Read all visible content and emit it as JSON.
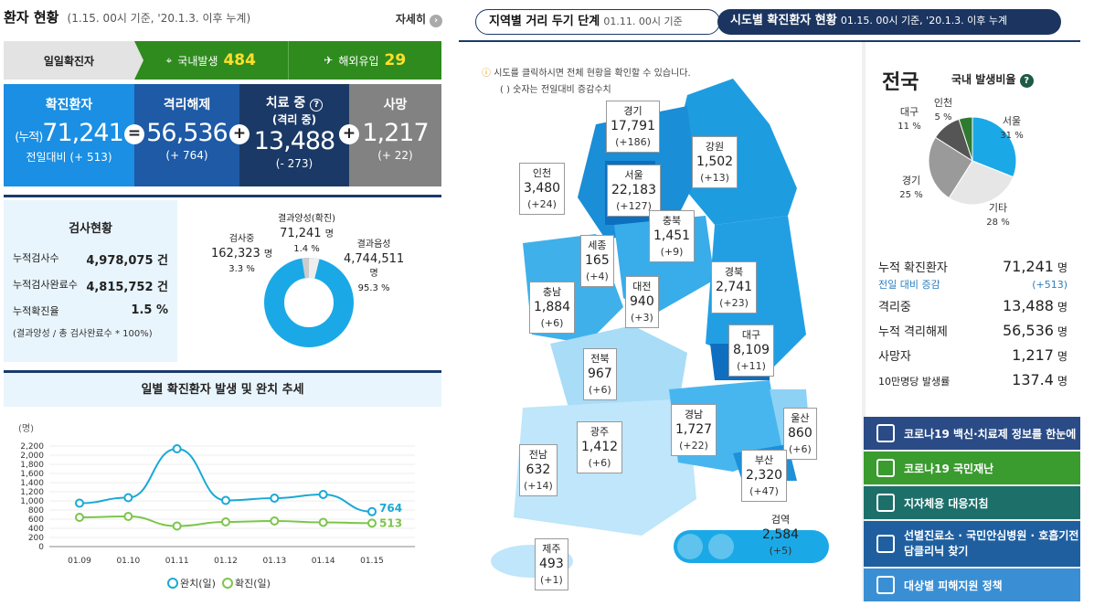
{
  "header": {
    "title": "환자 현황",
    "subtitle": "(1.15. 00시 기준, '20.1.3. 이후 누계)",
    "more_label": "자세히"
  },
  "daily": {
    "label": "일일확진자",
    "domestic_label": "국내발생",
    "domestic": "484",
    "overseas_label": "해외유입",
    "overseas": "29"
  },
  "stats": {
    "confirmed": {
      "label": "확진환자",
      "prefix": "(누적)",
      "value": "71,241",
      "delta": "전일대비 (+ 513)"
    },
    "released": {
      "label": "격리해제",
      "value": "56,536",
      "delta": "(+ 764)"
    },
    "treating": {
      "label": "치료 중",
      "sub": "(격리 중)",
      "value": "13,488",
      "delta": "(- 273)"
    },
    "deaths": {
      "label": "사망",
      "value": "1,217",
      "delta": "(+ 22)"
    }
  },
  "test": {
    "title": "검사현황",
    "rows": [
      {
        "label": "누적검사수",
        "value": "4,978,075 건"
      },
      {
        "label": "누적검사완료수",
        "value": "4,815,752 건"
      },
      {
        "label": "누적확진율",
        "value": "1.5 %"
      }
    ],
    "note": "(결과양성 / 총 검사완료수 * 100%)",
    "donut": {
      "testing": {
        "label": "검사중",
        "value": "162,323",
        "unit": "명",
        "pct": "3.3 %"
      },
      "positive": {
        "label": "결과양성(확진)",
        "value": "71,241",
        "unit": "명",
        "pct": "1.4 %"
      },
      "negative": {
        "label": "결과음성",
        "value": "4,744,511",
        "unit": "명",
        "pct": "95.3 %"
      }
    }
  },
  "trend": {
    "title": "일별 확진환자 발생 및 완치 추세",
    "unit": "(명)",
    "legend": [
      "완치(일)",
      "확진(일)"
    ]
  },
  "chart_data": {
    "type": "line",
    "x": [
      "01.09",
      "01.10",
      "01.11",
      "01.12",
      "01.13",
      "01.14",
      "01.15"
    ],
    "ylim": [
      0,
      2200
    ],
    "yticks": [
      "0",
      "200",
      "400",
      "600",
      "800",
      "1,000",
      "1,200",
      "1,400",
      "1,600",
      "1,800",
      "2,000",
      "2,200"
    ],
    "series": [
      {
        "name": "완치(일)",
        "color": "#1aa9d6",
        "values": [
          950,
          1070,
          2140,
          1010,
          1060,
          1140,
          764
        ],
        "end_label": "764"
      },
      {
        "name": "확진(일)",
        "color": "#7cc54a",
        "values": [
          640,
          660,
          450,
          540,
          560,
          530,
          513
        ],
        "end_label": "513"
      }
    ]
  },
  "tabs": {
    "tab1": {
      "label": "지역별 거리 두기 단계",
      "sub": "01.11. 00시 기준"
    },
    "tab2": {
      "label": "시도별 확진환자 현황",
      "sub": "01.15. 00시 기준, '20.1.3. 이후 누계"
    }
  },
  "map": {
    "note1": "시도를 클릭하시면 전체 현황을 확인할 수 있습니다.",
    "note2": "( ) 숫자는 전일대비 증감수치",
    "regions": [
      {
        "name": "경기",
        "count": "17,791",
        "delta": "(+186)"
      },
      {
        "name": "강원",
        "count": "1,502",
        "delta": "(+13)"
      },
      {
        "name": "인천",
        "count": "3,480",
        "delta": "(+24)"
      },
      {
        "name": "서울",
        "count": "22,183",
        "delta": "(+127)"
      },
      {
        "name": "충북",
        "count": "1,451",
        "delta": "(+9)"
      },
      {
        "name": "세종",
        "count": "165",
        "delta": "(+4)"
      },
      {
        "name": "충남",
        "count": "1,884",
        "delta": "(+6)"
      },
      {
        "name": "대전",
        "count": "940",
        "delta": "(+3)"
      },
      {
        "name": "경북",
        "count": "2,741",
        "delta": "(+23)"
      },
      {
        "name": "대구",
        "count": "8,109",
        "delta": "(+11)"
      },
      {
        "name": "전북",
        "count": "967",
        "delta": "(+6)"
      },
      {
        "name": "울산",
        "count": "860",
        "delta": "(+6)"
      },
      {
        "name": "경남",
        "count": "1,727",
        "delta": "(+22)"
      },
      {
        "name": "광주",
        "count": "1,412",
        "delta": "(+6)"
      },
      {
        "name": "전남",
        "count": "632",
        "delta": "(+14)"
      },
      {
        "name": "부산",
        "count": "2,320",
        "delta": "(+47)"
      },
      {
        "name": "검역",
        "count": "2,584",
        "delta": "(+5)"
      },
      {
        "name": "제주",
        "count": "493",
        "delta": "(+1)"
      }
    ]
  },
  "info": {
    "title": "전국",
    "ratio_label": "국내 발생비율",
    "pie": [
      {
        "name": "서울",
        "pct": "31 %",
        "value": 31,
        "color": "#1aa9e6"
      },
      {
        "name": "기타",
        "pct": "28 %",
        "value": 28,
        "color": "#e6e6e6"
      },
      {
        "name": "경기",
        "pct": "25 %",
        "value": 25,
        "color": "#9a9a9a"
      },
      {
        "name": "대구",
        "pct": "11 %",
        "value": 11,
        "color": "#555555"
      },
      {
        "name": "인천",
        "pct": "5 %",
        "value": 5,
        "color": "#2f7a30"
      }
    ],
    "rows": [
      {
        "label": "누적 확진환자",
        "value": "71,241",
        "unit": "명"
      },
      {
        "label": "격리중",
        "value": "13,488",
        "unit": "명"
      },
      {
        "label": "누적 격리해제",
        "value": "56,536",
        "unit": "명"
      },
      {
        "label": "사망자",
        "value": "1,217",
        "unit": "명"
      },
      {
        "label": "10만명당 발생률",
        "value": "137.4",
        "unit": "명"
      }
    ],
    "delta_label": "전일 대비 증감",
    "delta_value": "(+513)"
  },
  "buttons": [
    {
      "label": "코로나19 백신·치료제 정보를 한눈에",
      "color": "#2a4b86"
    },
    {
      "label": "코로나19 국민재난",
      "color": "#3a9b2e"
    },
    {
      "label": "지자체용 대응지침",
      "color": "#1d6f6a"
    },
    {
      "label": "선별진료소 · 국민안심병원 · 호흡기전담클리닉 찾기",
      "color": "#1f5fa0"
    },
    {
      "label": "대상별 피해지원 정책",
      "color": "#3a8fd4"
    }
  ]
}
